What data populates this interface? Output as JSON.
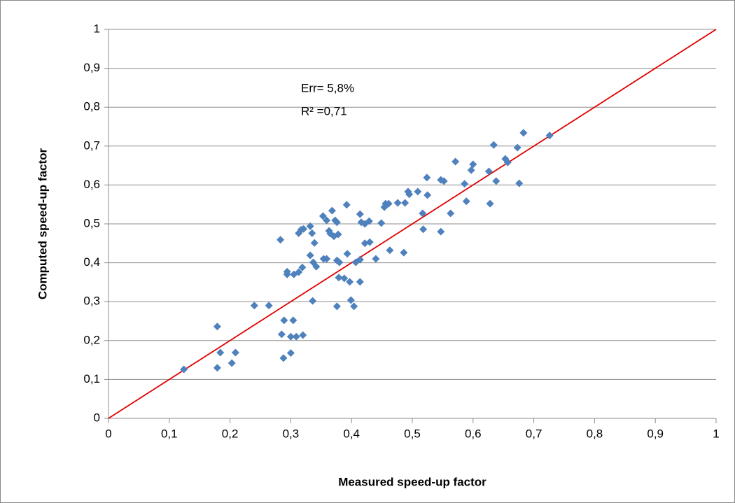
{
  "chart_data": {
    "type": "scatter",
    "x_label": "Measured speed-up factor",
    "y_label": "Computed speed-up factor",
    "annotations": [
      "Err= 5,8%",
      "R² =0,71"
    ],
    "xlim": [
      0,
      1
    ],
    "ylim": [
      0,
      1
    ],
    "xticks": [
      0,
      {
        "value": 0.1,
        "label": "0,1"
      },
      {
        "value": 0.2,
        "label": "0,2"
      },
      {
        "value": 0.3,
        "label": "0,3"
      },
      {
        "value": 0.4,
        "label": "0,4"
      },
      {
        "value": 0.5,
        "label": "0,5"
      },
      {
        "value": 0.6,
        "label": "0,6"
      },
      {
        "value": 0.7,
        "label": "0,7"
      },
      {
        "value": 0.8,
        "label": "0,8"
      },
      {
        "value": 0.9,
        "label": "0,9"
      },
      1
    ],
    "yticks": [
      0,
      {
        "value": 0.1,
        "label": "0,1"
      },
      {
        "value": 0.2,
        "label": "0,2"
      },
      {
        "value": 0.3,
        "label": "0,3"
      },
      {
        "value": 0.4,
        "label": "0,4"
      },
      {
        "value": 0.5,
        "label": "0,5"
      },
      {
        "value": 0.6,
        "label": "0,6"
      },
      {
        "value": 0.7,
        "label": "0,7"
      },
      {
        "value": 0.8,
        "label": "0,8"
      },
      {
        "value": 0.9,
        "label": "0,9"
      },
      1
    ],
    "grid": true,
    "reference_line": {
      "x": [
        0,
        1
      ],
      "y": [
        0,
        1
      ],
      "color": "#e00000"
    },
    "series": [
      {
        "color": "#4f81bd",
        "x": [
          0.124,
          0.179,
          0.179,
          0.184,
          0.203,
          0.209,
          0.24,
          0.264,
          0.283,
          0.285,
          0.288,
          0.289,
          0.294,
          0.294,
          0.3,
          0.3,
          0.304,
          0.309,
          0.305,
          0.313,
          0.313,
          0.317,
          0.32,
          0.319,
          0.321,
          0.332,
          0.332,
          0.335,
          0.336,
          0.337,
          0.339,
          0.342,
          0.353,
          0.354,
          0.359,
          0.359,
          0.363,
          0.365,
          0.368,
          0.371,
          0.373,
          0.376,
          0.376,
          0.376,
          0.378,
          0.379,
          0.38,
          0.388,
          0.392,
          0.393,
          0.397,
          0.399,
          0.404,
          0.407,
          0.414,
          0.414,
          0.414,
          0.416,
          0.422,
          0.422,
          0.429,
          0.43,
          0.44,
          0.449,
          0.454,
          0.456,
          0.461,
          0.463,
          0.476,
          0.486,
          0.488,
          0.493,
          0.495,
          0.509,
          0.517,
          0.518,
          0.524,
          0.525,
          0.547,
          0.547,
          0.552,
          0.563,
          0.571,
          0.586,
          0.589,
          0.597,
          0.6,
          0.626,
          0.628,
          0.634,
          0.638,
          0.653,
          0.657,
          0.673,
          0.676,
          0.683,
          0.726
        ],
        "y": [
          0.126,
          0.236,
          0.13,
          0.169,
          0.142,
          0.169,
          0.29,
          0.29,
          0.459,
          0.216,
          0.155,
          0.252,
          0.377,
          0.37,
          0.21,
          0.168,
          0.252,
          0.21,
          0.37,
          0.376,
          0.476,
          0.485,
          0.214,
          0.388,
          0.487,
          0.494,
          0.419,
          0.476,
          0.302,
          0.401,
          0.451,
          0.39,
          0.52,
          0.41,
          0.41,
          0.509,
          0.482,
          0.475,
          0.534,
          0.468,
          0.509,
          0.504,
          0.406,
          0.288,
          0.473,
          0.362,
          0.401,
          0.36,
          0.549,
          0.423,
          0.351,
          0.304,
          0.288,
          0.401,
          0.408,
          0.351,
          0.525,
          0.504,
          0.5,
          0.45,
          0.507,
          0.453,
          0.41,
          0.502,
          0.543,
          0.552,
          0.552,
          0.432,
          0.554,
          0.426,
          0.554,
          0.583,
          0.576,
          0.583,
          0.527,
          0.486,
          0.619,
          0.574,
          0.613,
          0.48,
          0.61,
          0.527,
          0.66,
          0.603,
          0.558,
          0.638,
          0.653,
          0.635,
          0.552,
          0.703,
          0.61,
          0.667,
          0.658,
          0.696,
          0.604,
          0.734,
          0.727
        ]
      }
    ]
  }
}
